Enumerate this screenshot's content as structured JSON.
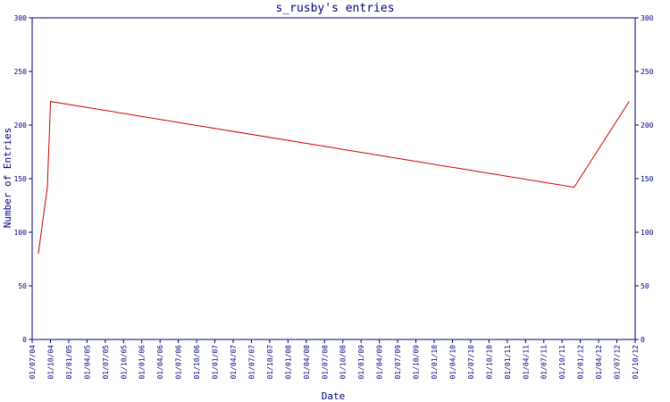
{
  "chart_data": {
    "type": "line",
    "title": "s_rusby's entries",
    "xlabel": "Date",
    "ylabel": "Number of Entries",
    "ylim": [
      0,
      300
    ],
    "yticks": [
      0,
      50,
      100,
      150,
      200,
      250,
      300
    ],
    "xticks": [
      "01/07/04",
      "01/10/04",
      "01/01/05",
      "01/04/05",
      "01/07/05",
      "01/10/05",
      "01/01/06",
      "01/04/06",
      "01/07/06",
      "01/10/06",
      "01/01/07",
      "01/04/07",
      "01/07/07",
      "01/10/07",
      "01/01/08",
      "01/04/08",
      "01/07/08",
      "01/10/08",
      "01/01/09",
      "01/04/09",
      "01/07/09",
      "01/10/09",
      "01/01/10",
      "01/04/10",
      "01/07/10",
      "01/10/10",
      "01/01/11",
      "01/04/11",
      "01/07/11",
      "01/10/11",
      "01/01/12",
      "01/04/12",
      "01/07/12",
      "01/10/12"
    ],
    "xlim": [
      "2004-07-01",
      "2012-10-01"
    ],
    "grid": false,
    "colors": {
      "axis": "#000080",
      "series": "#cc0000"
    },
    "series": [
      {
        "x": [
          "2004-08-01",
          "2004-09-15",
          "2004-10-01",
          "2011-12-01",
          "2012-09-01"
        ],
        "y": [
          80,
          142,
          222,
          142,
          222
        ]
      }
    ]
  }
}
